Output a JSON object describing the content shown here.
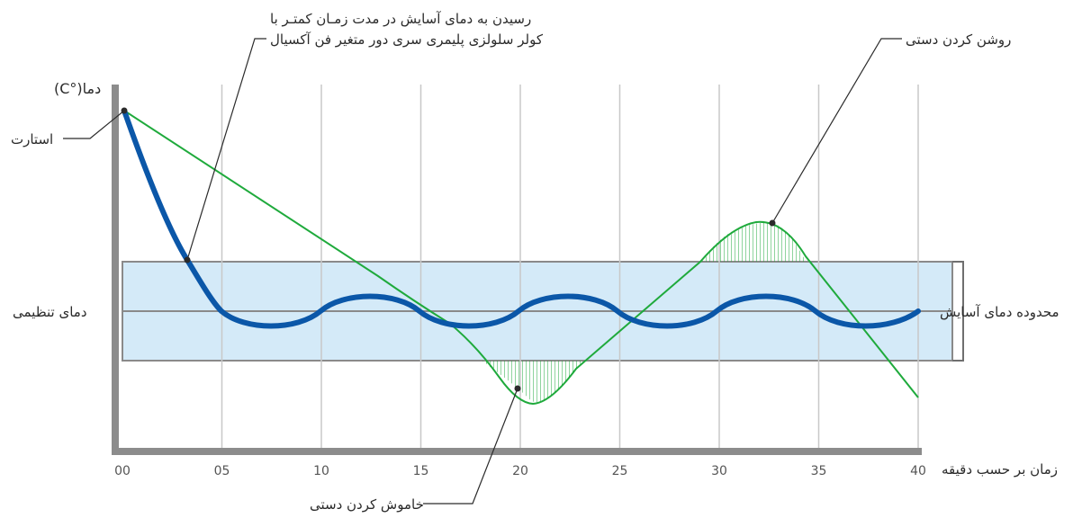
{
  "colors": {
    "comfort_band": "#d4eaf8",
    "comfort_band_border": "#8a8a8a",
    "axis": "#8c8c8c",
    "grid": "#c8c8c8",
    "evaporative_curve": "#0b57a8",
    "manual_curve": "#1faa3c",
    "callout_line": "#2b2b2b"
  },
  "labels": {
    "y_axis_title": "دما",
    "y_axis_unit": "(C°)",
    "x_axis_title": "زمان بر حسب دقیقه",
    "start": "استارت",
    "setpoint": "دمای تنظیمی",
    "comfort_range": "محدوده دمای آسایش",
    "reach_comfort_line1": "رسیدن به دمای آسایش در مدت زمـان کمتـر با",
    "reach_comfort_line2": "کولر سلولزی پلیمری سری دور متغیر فن آکسیال",
    "manual_on": "روشن کردن دستی",
    "manual_off": "خاموش کردن دستی"
  },
  "x_ticks": [
    "00",
    "05",
    "10",
    "15",
    "20",
    "25",
    "30",
    "35",
    "40"
  ],
  "chart_data": {
    "type": "line",
    "x": [
      0,
      2.5,
      5,
      7.5,
      10,
      12.5,
      15,
      17.5,
      20,
      22.5,
      25,
      27.5,
      30,
      32.5,
      35,
      37.5,
      40
    ],
    "xlim": [
      0,
      40
    ],
    "x_ticks": [
      "00",
      "05",
      "10",
      "15",
      "20",
      "25",
      "30",
      "35",
      "40"
    ],
    "xlabel": "زمان بر حسب دقیقه",
    "ylabel": "دما(C°)",
    "series": [
      {
        "name": "کولر سلولزی پلیمری سری دور متغیر فن آکسیال",
        "points": [
          [
            0,
            100
          ],
          [
            1,
            80
          ],
          [
            2,
            64
          ],
          [
            3.3,
            52
          ],
          [
            5,
            46
          ],
          [
            7.5,
            45
          ],
          [
            10,
            46
          ],
          [
            12.5,
            47.5
          ],
          [
            15,
            46
          ],
          [
            17.5,
            44.5
          ],
          [
            20,
            46
          ],
          [
            22.5,
            47.5
          ],
          [
            25,
            46
          ],
          [
            27.5,
            44.5
          ],
          [
            30,
            46
          ],
          [
            32.5,
            47.5
          ],
          [
            35,
            46
          ],
          [
            37.5,
            44.5
          ],
          [
            40,
            46
          ]
        ]
      },
      {
        "name": "روشن / خاموش کردن دستی",
        "points": [
          [
            0,
            100
          ],
          [
            16,
            50
          ],
          [
            20,
            44
          ],
          [
            29,
            52
          ],
          [
            31,
            54
          ],
          [
            33,
            55
          ],
          [
            34.5,
            53
          ],
          [
            40,
            42
          ]
        ]
      }
    ],
    "comfort_range": {
      "lower": 44.5,
      "setpoint": 46,
      "upper": 52
    },
    "grid": true
  }
}
